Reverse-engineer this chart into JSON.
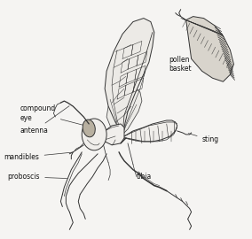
{
  "bg_color": "#f5f4f2",
  "line_color": "#333333",
  "lw": 0.7,
  "figsize": [
    2.84,
    2.7
  ],
  "dpi": 100,
  "labels": {
    "compound_eye": "compound\neye",
    "antenna": "antenna",
    "mandibles": "mandibles",
    "proboscis": "proboscis",
    "pollen_basket": "pollen\nbasket",
    "tibia": "tibia",
    "sting": "sting"
  },
  "font_size": 5.5
}
